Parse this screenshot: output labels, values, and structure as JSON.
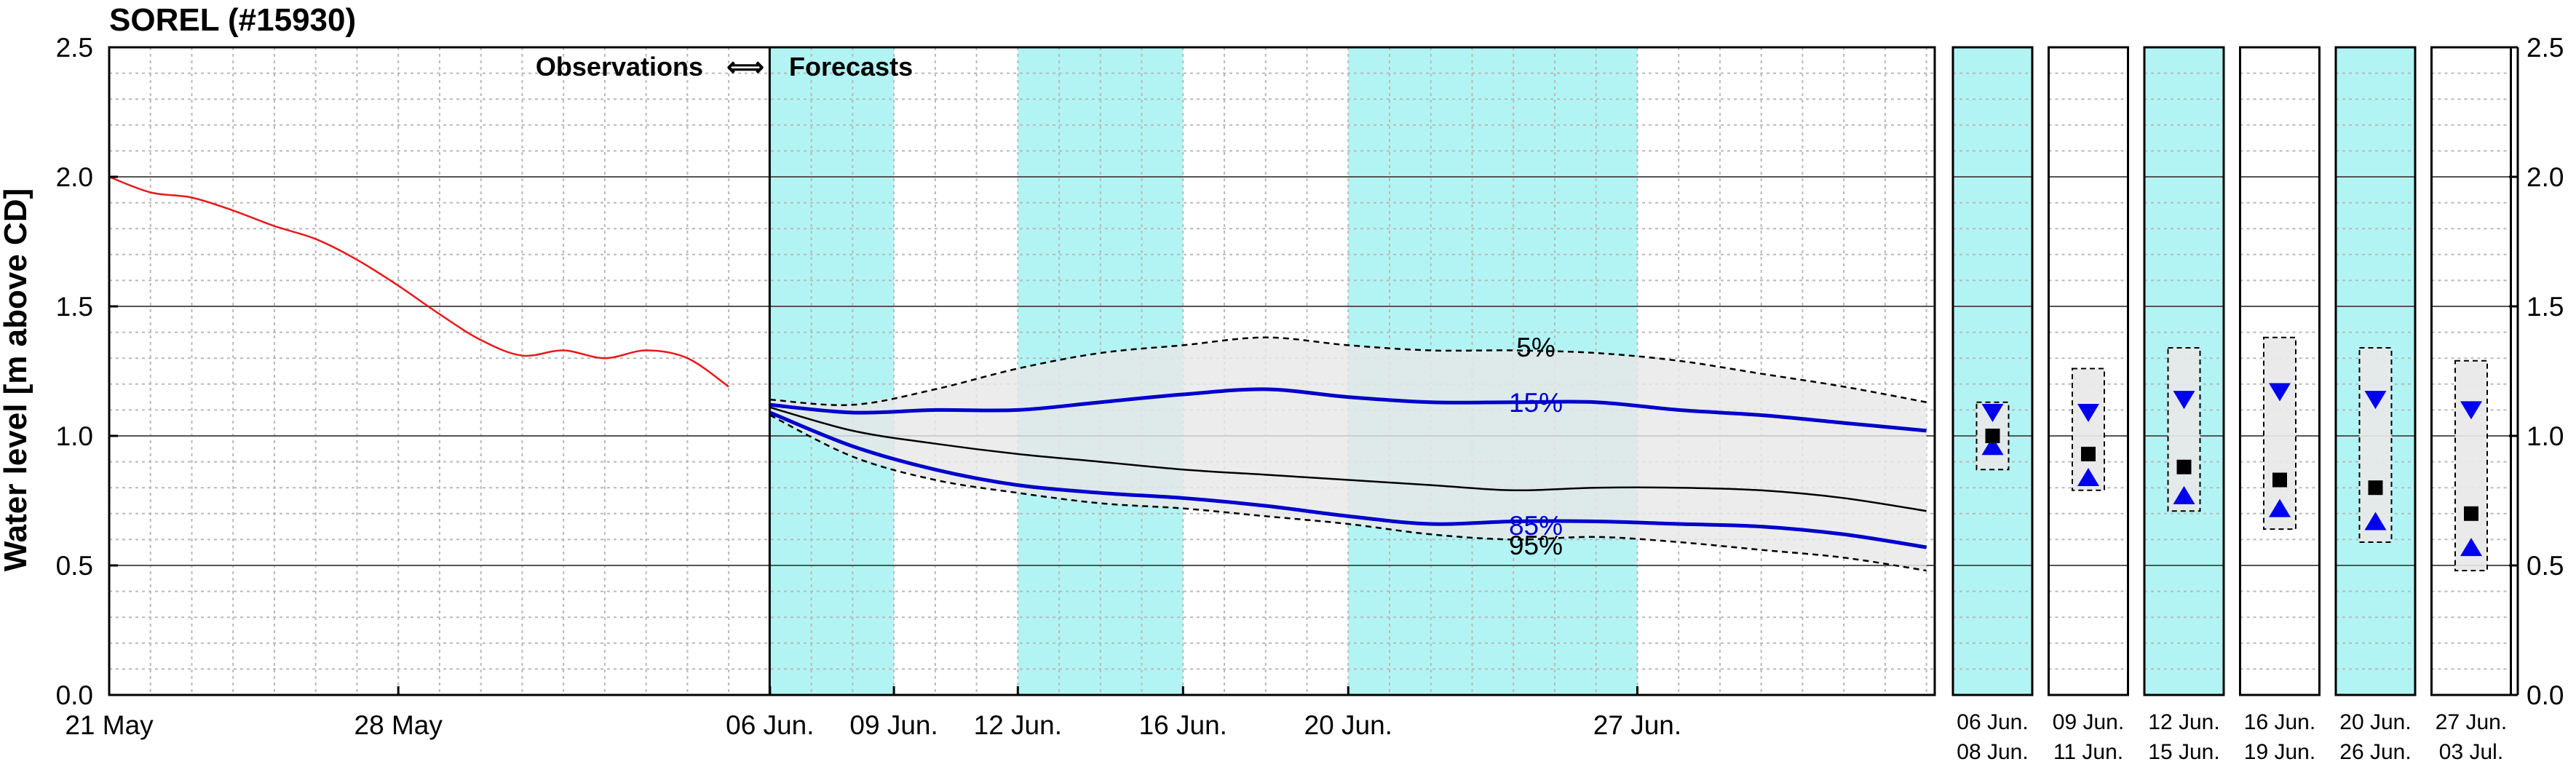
{
  "chart_data": {
    "type": "line",
    "title": "SOREL (#15930)",
    "ylabel": "Water level [m above CD]",
    "ylim": [
      0.0,
      2.5
    ],
    "yticks": [
      "0.0",
      "0.5",
      "1.0",
      "1.5",
      "2.0",
      "2.5"
    ],
    "annotation_obs": "Observations",
    "annotation_arrow": "⟺",
    "annotation_fc": "Forecasts",
    "xtick_labels": [
      "21 May",
      "28 May",
      "06 Jun.",
      "09 Jun.",
      "12 Jun.",
      "16 Jun.",
      "20 Jun.",
      "27 Jun."
    ],
    "observations": {
      "color": "#e8191c",
      "x": [
        "May 21",
        "May 22",
        "May 23",
        "May 24",
        "May 25",
        "May 26",
        "May 27",
        "May 28",
        "May 29",
        "May 30",
        "May 31",
        "Jun 01",
        "Jun 02",
        "Jun 03",
        "Jun 04",
        "Jun 05"
      ],
      "values": [
        2.0,
        1.94,
        1.92,
        1.87,
        1.81,
        1.76,
        1.68,
        1.58,
        1.47,
        1.37,
        1.31,
        1.33,
        1.3,
        1.33,
        1.3,
        1.19
      ]
    },
    "forecast_x": [
      "Jun 06",
      "Jun 08",
      "Jun 10",
      "Jun 12",
      "Jun 14",
      "Jun 16",
      "Jun 18",
      "Jun 20",
      "Jun 22",
      "Jun 24",
      "Jun 26",
      "Jun 28",
      "Jun 30",
      "Jul 02",
      "Jul 04"
    ],
    "series": [
      {
        "name": "5%",
        "color": "#000000",
        "style": "dashed",
        "values": [
          1.14,
          1.12,
          1.18,
          1.26,
          1.32,
          1.35,
          1.38,
          1.35,
          1.33,
          1.33,
          1.32,
          1.29,
          1.24,
          1.19,
          1.13
        ]
      },
      {
        "name": "15%",
        "color": "#0000cc",
        "style": "solid",
        "values": [
          1.12,
          1.09,
          1.1,
          1.1,
          1.13,
          1.16,
          1.18,
          1.15,
          1.13,
          1.13,
          1.13,
          1.1,
          1.08,
          1.05,
          1.02
        ]
      },
      {
        "name": "",
        "color": "#000000",
        "style": "solid",
        "values": [
          1.11,
          1.02,
          0.97,
          0.93,
          0.9,
          0.87,
          0.85,
          0.83,
          0.81,
          0.79,
          0.8,
          0.8,
          0.79,
          0.76,
          0.71
        ]
      },
      {
        "name": "85%",
        "color": "#0000cc",
        "style": "solid",
        "values": [
          1.09,
          0.96,
          0.87,
          0.81,
          0.78,
          0.76,
          0.73,
          0.69,
          0.66,
          0.67,
          0.67,
          0.66,
          0.65,
          0.62,
          0.57
        ]
      },
      {
        "name": "95%",
        "color": "#000000",
        "style": "dashed",
        "values": [
          1.08,
          0.92,
          0.83,
          0.78,
          0.74,
          0.72,
          0.69,
          0.66,
          0.62,
          0.6,
          0.61,
          0.59,
          0.56,
          0.53,
          0.48
        ]
      }
    ],
    "shaded_periods": [
      [
        "Jun 06",
        "Jun 09"
      ],
      [
        "Jun 12",
        "Jun 16"
      ],
      [
        "Jun 20",
        "Jun 27"
      ]
    ],
    "shade_color": "#b2f4f4",
    "band_color": "#e8e8e8",
    "weekly_panels": [
      {
        "label_top": "06 Jun.",
        "label_bottom": "08 Jun.",
        "shaded": true,
        "max": 1.13,
        "min": 0.87,
        "q15": 1.09,
        "median": 1.0,
        "q85": 0.96
      },
      {
        "label_top": "09 Jun.",
        "label_bottom": "11 Jun.",
        "shaded": false,
        "max": 1.26,
        "min": 0.79,
        "q15": 1.09,
        "median": 0.93,
        "q85": 0.84
      },
      {
        "label_top": "12 Jun.",
        "label_bottom": "15 Jun.",
        "shaded": true,
        "max": 1.34,
        "min": 0.71,
        "q15": 1.14,
        "median": 0.88,
        "q85": 0.77
      },
      {
        "label_top": "16 Jun.",
        "label_bottom": "19 Jun.",
        "shaded": false,
        "max": 1.38,
        "min": 0.64,
        "q15": 1.17,
        "median": 0.83,
        "q85": 0.72
      },
      {
        "label_top": "20 Jun.",
        "label_bottom": "26 Jun.",
        "shaded": true,
        "max": 1.34,
        "min": 0.59,
        "q15": 1.14,
        "median": 0.8,
        "q85": 0.67
      },
      {
        "label_top": "27 Jun.",
        "label_bottom": "03 Jul.",
        "shaded": false,
        "max": 1.29,
        "min": 0.48,
        "q15": 1.1,
        "median": 0.7,
        "q85": 0.57
      }
    ]
  }
}
